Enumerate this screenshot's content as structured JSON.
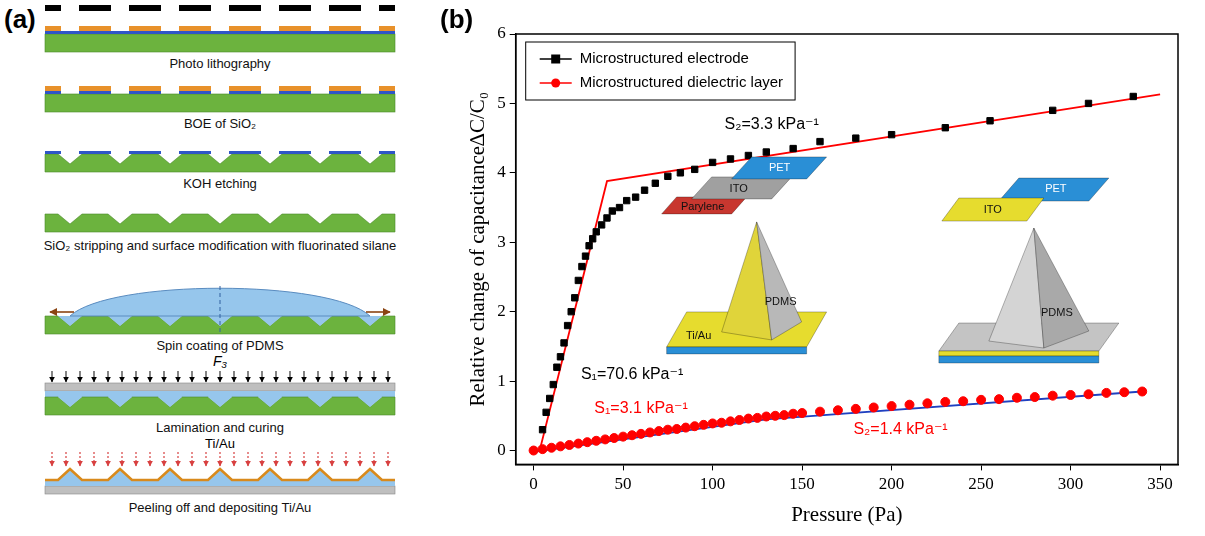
{
  "panel_a": {
    "label": "(a)",
    "steps": [
      "Photo lithography",
      "BOE of SiO₂",
      "KOH etching",
      "SiO₂ stripping and surface modification with fluorinated silane",
      "Spin coating of PDMS",
      "Lamination and curing",
      "Peeling off and depositing Ti/Au"
    ],
    "force": "F₃",
    "metal": "Ti/Au"
  },
  "chart_data": {
    "type": "scatter",
    "panel_label": "(b)",
    "x_label": "Pressure (Pa)",
    "y_label": "Relative change of capacitance∆C/C₀",
    "xlim": [
      -10,
      360
    ],
    "xticks": [
      0,
      50,
      100,
      150,
      200,
      250,
      300,
      350
    ],
    "ylim": [
      -0.2,
      6
    ],
    "yticks": [
      0,
      1,
      2,
      3,
      4,
      5,
      6
    ],
    "grid": false,
    "legend": "upper left",
    "series": [
      {
        "name": "Microstructured electrode",
        "color": "#000000",
        "marker": "square",
        "line_style": "none",
        "x": [
          5,
          7,
          9,
          11,
          13,
          15,
          17,
          19,
          21,
          23,
          25,
          27,
          29,
          31,
          33,
          35,
          38,
          41,
          44,
          48,
          52,
          57,
          62,
          68,
          75,
          82,
          90,
          100,
          110,
          120,
          130,
          145,
          160,
          180,
          200,
          230,
          255,
          290,
          310,
          335
        ],
        "values": [
          0.3,
          0.55,
          0.75,
          0.95,
          1.2,
          1.35,
          1.55,
          1.8,
          2.0,
          2.2,
          2.45,
          2.65,
          2.8,
          2.95,
          3.05,
          3.15,
          3.25,
          3.35,
          3.45,
          3.5,
          3.6,
          3.65,
          3.75,
          3.85,
          3.95,
          4.0,
          4.05,
          4.15,
          4.2,
          4.25,
          4.3,
          4.35,
          4.45,
          4.5,
          4.55,
          4.65,
          4.75,
          4.9,
          5.0,
          5.1
        ]
      },
      {
        "name": "Microstructured dielectric layer",
        "color": "#ff0000",
        "marker": "circle",
        "line_style": "none",
        "x": [
          0,
          5,
          10,
          15,
          20,
          25,
          30,
          35,
          40,
          45,
          50,
          55,
          60,
          65,
          70,
          75,
          80,
          85,
          90,
          95,
          100,
          105,
          110,
          115,
          120,
          125,
          130,
          135,
          140,
          145,
          150,
          160,
          170,
          180,
          190,
          200,
          210,
          220,
          230,
          240,
          250,
          260,
          270,
          280,
          290,
          300,
          310,
          320,
          330,
          340
        ],
        "values": [
          0,
          0.02,
          0.04,
          0.06,
          0.08,
          0.1,
          0.12,
          0.14,
          0.16,
          0.18,
          0.2,
          0.22,
          0.24,
          0.26,
          0.28,
          0.3,
          0.31,
          0.33,
          0.35,
          0.37,
          0.39,
          0.4,
          0.42,
          0.44,
          0.46,
          0.47,
          0.49,
          0.5,
          0.51,
          0.53,
          0.54,
          0.56,
          0.58,
          0.6,
          0.62,
          0.64,
          0.66,
          0.68,
          0.7,
          0.71,
          0.73,
          0.74,
          0.76,
          0.77,
          0.79,
          0.8,
          0.81,
          0.83,
          0.84,
          0.85
        ]
      },
      {
        "color": "#ff0000",
        "marker": "none",
        "line_style": "solid",
        "x": [
          3.4,
          41,
          350
        ],
        "values": [
          0,
          3.88,
          5.13
        ]
      },
      {
        "color": "#2040c0",
        "marker": "none",
        "line_style": "solid",
        "x": [
          0,
          130,
          340
        ],
        "values": [
          -0.02,
          0.45,
          0.85
        ]
      }
    ],
    "annotations": [
      {
        "text": "S₂=3.3 kPa⁻¹",
        "x": 133,
        "y": 4.7,
        "color": "#000000"
      },
      {
        "text": "S₁=70.6 kPa⁻¹",
        "x": 55,
        "y": 1.1,
        "color": "#000000"
      },
      {
        "text": "S₁=3.1 kPa⁻¹",
        "x": 60,
        "y": 0.6,
        "color": "#ff0000"
      },
      {
        "text": "S₂=1.4 kPa⁻¹",
        "x": 205,
        "y": 0.3,
        "color": "#ff0000"
      }
    ],
    "insets": [
      {
        "labels": {
          "pet": "PET",
          "ito": "ITO",
          "parylene": "Parylene",
          "pyramid": "PDMS",
          "coating": "Ti/Au"
        }
      },
      {
        "labels": {
          "ito": "ITO",
          "pet": "PET",
          "pyramid": "PDMS"
        }
      }
    ]
  }
}
